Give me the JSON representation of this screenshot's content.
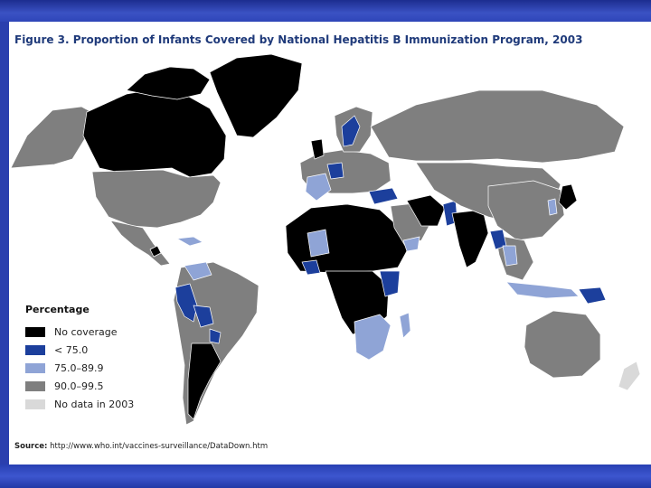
{
  "title": "Figure 3. Proportion of Infants Covered by National Hepatitis B Immunization Program, 2003",
  "colors": {
    "no_coverage": "#000000",
    "lt_75": "#1c3f9c",
    "range_75_89": "#8fa4d6",
    "range_90_99": "#7f7f7f",
    "no_data": "#d9d9d9",
    "ocean": "#ffffff",
    "border": "#ffffff"
  },
  "legend": {
    "title": "Percentage",
    "items": [
      {
        "label": "No coverage",
        "color_key": "no_coverage"
      },
      {
        "label": "< 75.0",
        "color_key": "lt_75"
      },
      {
        "label": "75.0–89.9",
        "color_key": "range_75_89"
      },
      {
        "label": "90.0–99.5",
        "color_key": "range_90_99"
      },
      {
        "label": "No data in 2003",
        "color_key": "no_data"
      }
    ]
  },
  "source": {
    "prefix": "Source:",
    "text": "http://www.who.int/vaccines-surveillance/DataDown.htm"
  }
}
